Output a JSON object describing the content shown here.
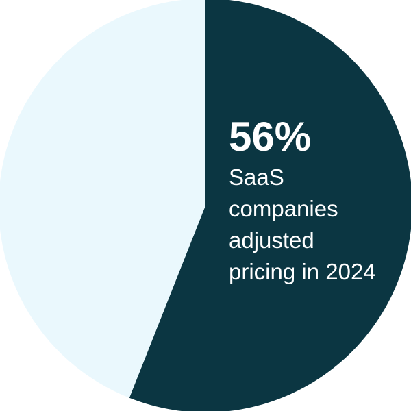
{
  "chart_data": {
    "type": "pie",
    "categories": [
      "SaaS companies adjusted pricing in 2024",
      null
    ],
    "values": [
      56,
      44
    ],
    "value_labels": [
      "56%",
      null
    ],
    "colors": [
      "#0b3642",
      "#eaf8fd"
    ],
    "start_angle": 0,
    "direction": "clockwise"
  }
}
